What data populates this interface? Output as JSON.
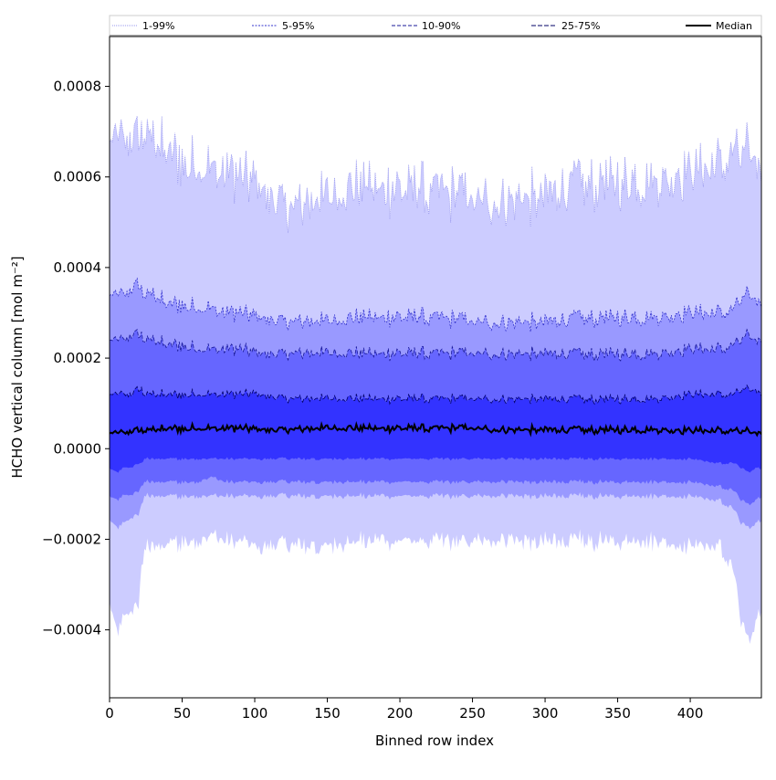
{
  "chart_data": {
    "type": "area",
    "title": "",
    "xlabel": "Binned row index",
    "ylabel": "HCHO vertical column [mol m⁻²]",
    "xlim": [
      0,
      449
    ],
    "ylim": [
      -0.00055,
      0.00091
    ],
    "xticks": [
      0,
      50,
      100,
      150,
      200,
      250,
      300,
      350,
      400
    ],
    "xtick_labels": [
      "0",
      "50",
      "100",
      "150",
      "200",
      "250",
      "300",
      "350",
      "400"
    ],
    "yticks": [
      -0.0004,
      -0.0002,
      0.0,
      0.0002,
      0.0004,
      0.0006,
      0.0008
    ],
    "ytick_labels": [
      "−0.0004",
      "−0.0002",
      "0.0000",
      "0.0002",
      "0.0004",
      "0.0006",
      "0.0008"
    ],
    "grid": false,
    "legend_position": "top, spanning width",
    "x_breakpoints": [
      0,
      5,
      10,
      15,
      20,
      22,
      24,
      30,
      40,
      50,
      60,
      70,
      80,
      90,
      100,
      125,
      150,
      175,
      200,
      225,
      250,
      275,
      300,
      325,
      350,
      375,
      400,
      420,
      430,
      435,
      440,
      445,
      449
    ],
    "bands": [
      {
        "name": "1-99%",
        "color": "#ccccff",
        "line_color": "#9999ee",
        "dash": "1,1",
        "lower": [
          -0.00032,
          -0.00039,
          -0.00036,
          -0.00035,
          -0.00033,
          -0.00025,
          -0.00021,
          -0.0002,
          -0.0002,
          -0.00019,
          -0.00019,
          -0.00018,
          -0.00019,
          -0.00019,
          -0.0002,
          -0.0002,
          -0.0002,
          -0.00019,
          -0.00019,
          -0.00019,
          -0.00019,
          -0.00019,
          -0.00019,
          -0.00019,
          -0.00019,
          -0.00019,
          -0.0002,
          -0.0002,
          -0.00026,
          -0.00037,
          -0.00041,
          -0.00037,
          -0.00033
        ],
        "upper": [
          0.00068,
          0.00069,
          0.00068,
          0.00068,
          0.00068,
          0.00069,
          0.0007,
          0.00068,
          0.00066,
          0.00064,
          0.00062,
          0.00062,
          0.00061,
          0.0006,
          0.00058,
          0.00053,
          0.00055,
          0.00058,
          0.00057,
          0.00057,
          0.00055,
          0.00055,
          0.00056,
          0.00059,
          0.00059,
          0.00059,
          0.00061,
          0.00063,
          0.00066,
          0.00065,
          0.00066,
          0.00064,
          0.00061
        ]
      },
      {
        "name": "5-95%",
        "color": "#9999ff",
        "line_color": "#3333cc",
        "dash": "2,1.5",
        "lower": [
          -0.00015,
          -0.00017,
          -0.00016,
          -0.00015,
          -0.00014,
          -0.00012,
          -0.0001,
          -0.0001,
          -0.0001,
          -0.0001,
          -0.0001,
          -0.0001,
          -0.0001,
          -0.0001,
          -0.0001,
          -0.0001,
          -0.0001,
          -0.0001,
          -0.0001,
          -0.0001,
          -0.0001,
          -0.0001,
          -0.0001,
          -0.0001,
          -0.0001,
          -0.0001,
          -0.0001,
          -0.00011,
          -0.00013,
          -0.00016,
          -0.00017,
          -0.00016,
          -0.00015
        ],
        "upper": [
          0.00034,
          0.00034,
          0.00034,
          0.00035,
          0.00036,
          0.00035,
          0.00034,
          0.00034,
          0.00032,
          0.00032,
          0.00031,
          0.00031,
          0.0003,
          0.0003,
          0.00029,
          0.00028,
          0.00028,
          0.00029,
          0.00029,
          0.00029,
          0.00028,
          0.00028,
          0.00028,
          0.00029,
          0.00029,
          0.00029,
          0.0003,
          0.0003,
          0.00031,
          0.00033,
          0.00034,
          0.00033,
          0.00032
        ]
      },
      {
        "name": "10-90%",
        "color": "#6666ff",
        "line_color": "#1a1a99",
        "dash": "4,2",
        "lower": [
          -0.0001,
          -0.00011,
          -0.0001,
          -0.0001,
          -9e-05,
          -8e-05,
          -7e-05,
          -7e-05,
          -7e-05,
          -7e-05,
          -7e-05,
          -6e-05,
          -7e-05,
          -7e-05,
          -7e-05,
          -7e-05,
          -7e-05,
          -7e-05,
          -7e-05,
          -7e-05,
          -7e-05,
          -7e-05,
          -7e-05,
          -7e-05,
          -7e-05,
          -7e-05,
          -7e-05,
          -8e-05,
          -9e-05,
          -0.00011,
          -0.00012,
          -0.00011,
          -0.0001
        ],
        "upper": [
          0.00024,
          0.00024,
          0.00024,
          0.00025,
          0.00025,
          0.00025,
          0.00024,
          0.00024,
          0.00023,
          0.00023,
          0.00022,
          0.00022,
          0.00022,
          0.00022,
          0.00021,
          0.00021,
          0.00021,
          0.00021,
          0.00021,
          0.00021,
          0.00021,
          0.00021,
          0.00021,
          0.00021,
          0.00021,
          0.00021,
          0.00022,
          0.00022,
          0.00023,
          0.00024,
          0.00025,
          0.00024,
          0.00024
        ]
      },
      {
        "name": "25-75%",
        "color": "#3333ff",
        "line_color": "#000066",
        "dash": "5,2",
        "lower": [
          -4e-05,
          -5e-05,
          -4e-05,
          -4e-05,
          -3e-05,
          -3e-05,
          -2e-05,
          -2e-05,
          -2e-05,
          -2e-05,
          -2e-05,
          -2e-05,
          -2e-05,
          -2e-05,
          -2e-05,
          -2e-05,
          -2e-05,
          -2e-05,
          -2e-05,
          -2e-05,
          -2e-05,
          -2e-05,
          -2e-05,
          -2e-05,
          -2e-05,
          -2e-05,
          -2e-05,
          -3e-05,
          -3e-05,
          -4e-05,
          -5e-05,
          -4e-05,
          -4e-05
        ],
        "upper": [
          0.00012,
          0.00012,
          0.00012,
          0.00012,
          0.00013,
          0.00013,
          0.00012,
          0.00012,
          0.00012,
          0.00012,
          0.00012,
          0.00012,
          0.00012,
          0.00012,
          0.00012,
          0.00011,
          0.00011,
          0.00011,
          0.00011,
          0.00011,
          0.00011,
          0.00011,
          0.00011,
          0.00011,
          0.00011,
          0.00011,
          0.00012,
          0.00012,
          0.00012,
          0.00013,
          0.00013,
          0.00013,
          0.00012
        ]
      }
    ],
    "median": {
      "name": "Median",
      "color": "#000000",
      "values": [
        3.5e-05,
        3.5e-05,
        3.5e-05,
        3.8e-05,
        4e-05,
        4e-05,
        4e-05,
        4.2e-05,
        4.5e-05,
        4.5e-05,
        4.5e-05,
        4.5e-05,
        4.5e-05,
        4.5e-05,
        4.2e-05,
        4.2e-05,
        4.5e-05,
        4.5e-05,
        4.5e-05,
        4.5e-05,
        4.5e-05,
        4.2e-05,
        4.2e-05,
        4.2e-05,
        4.2e-05,
        4.2e-05,
        4e-05,
        4e-05,
        4e-05,
        3.8e-05,
        3.8e-05,
        3.5e-05,
        3.5e-05
      ]
    },
    "legend": [
      "1-99%",
      "5-95%",
      "10-90%",
      "25-75%",
      "Median"
    ]
  }
}
